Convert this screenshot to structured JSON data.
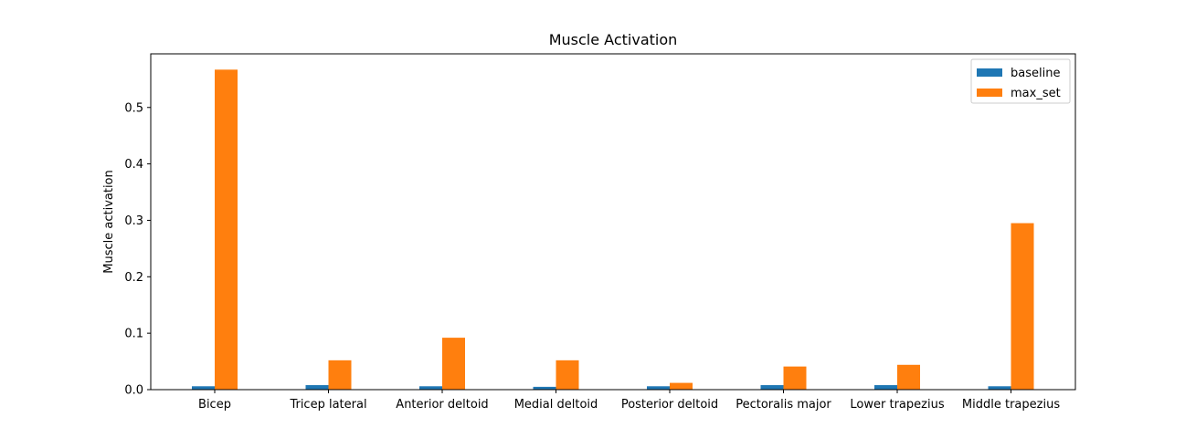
{
  "chart_data": {
    "type": "bar",
    "title": "Muscle Activation",
    "xlabel": "",
    "ylabel": "Muscle activation",
    "categories": [
      "Bicep",
      "Tricep lateral",
      "Anterior deltoid",
      "Medial deltoid",
      "Posterior deltoid",
      "Pectoralis major",
      "Lower trapezius",
      "Middle trapezius"
    ],
    "series": [
      {
        "name": "baseline",
        "color": "#1f77b4",
        "values": [
          0.006,
          0.008,
          0.006,
          0.005,
          0.006,
          0.008,
          0.008,
          0.006
        ]
      },
      {
        "name": "max_set",
        "color": "#ff7f0e",
        "values": [
          0.567,
          0.052,
          0.092,
          0.052,
          0.012,
          0.041,
          0.044,
          0.295
        ]
      }
    ],
    "yticks": [
      "0.0",
      "0.1",
      "0.2",
      "0.3",
      "0.4",
      "0.5"
    ],
    "ylim": [
      0,
      0.595
    ],
    "grid": false,
    "legend_position": "top-right"
  }
}
